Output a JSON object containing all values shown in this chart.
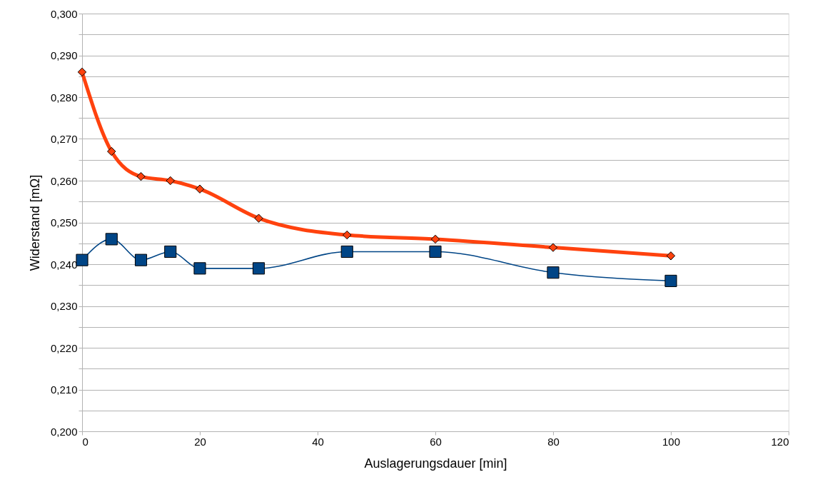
{
  "chart_data": {
    "type": "line",
    "xlabel": "Auslagerungsdauer [min]",
    "ylabel": "Widerstand [mΩ]",
    "x": [
      0,
      5,
      10,
      15,
      20,
      30,
      45,
      60,
      80,
      100
    ],
    "series": [
      {
        "color": "#004586",
        "marker": "square",
        "values": [
          0.241,
          0.246,
          0.241,
          0.243,
          0.239,
          0.239,
          0.243,
          0.243,
          0.238,
          0.236
        ]
      },
      {
        "color": "#ff420e",
        "marker": "diamond",
        "values": [
          0.286,
          0.267,
          0.261,
          0.26,
          0.258,
          0.251,
          0.247,
          0.246,
          0.244,
          0.242
        ]
      }
    ],
    "xlim": [
      0,
      120
    ],
    "xticks": [
      0,
      20,
      40,
      60,
      80,
      100,
      120
    ],
    "ylim": [
      0.2,
      0.3
    ],
    "yticks": [
      {
        "value": 0.2,
        "label": "0,200"
      },
      {
        "value": 0.205,
        "label": null
      },
      {
        "value": 0.21,
        "label": "0,210"
      },
      {
        "value": 0.215,
        "label": null
      },
      {
        "value": 0.22,
        "label": "0,220"
      },
      {
        "value": 0.225,
        "label": null
      },
      {
        "value": 0.23,
        "label": "0,230"
      },
      {
        "value": 0.235,
        "label": null
      },
      {
        "value": 0.24,
        "label": "0,240"
      },
      {
        "value": 0.245,
        "label": null
      },
      {
        "value": 0.25,
        "label": "0,250"
      },
      {
        "value": 0.255,
        "label": null
      },
      {
        "value": 0.26,
        "label": "0,260"
      },
      {
        "value": 0.265,
        "label": null
      },
      {
        "value": 0.27,
        "label": "0,270"
      },
      {
        "value": 0.275,
        "label": null
      },
      {
        "value": 0.28,
        "label": "0,280"
      },
      {
        "value": 0.285,
        "label": null
      },
      {
        "value": 0.29,
        "label": "0,290"
      },
      {
        "value": 0.295,
        "label": null
      },
      {
        "value": 0.3,
        "label": "0,300"
      }
    ],
    "grid": "y",
    "line_style": "solid"
  }
}
